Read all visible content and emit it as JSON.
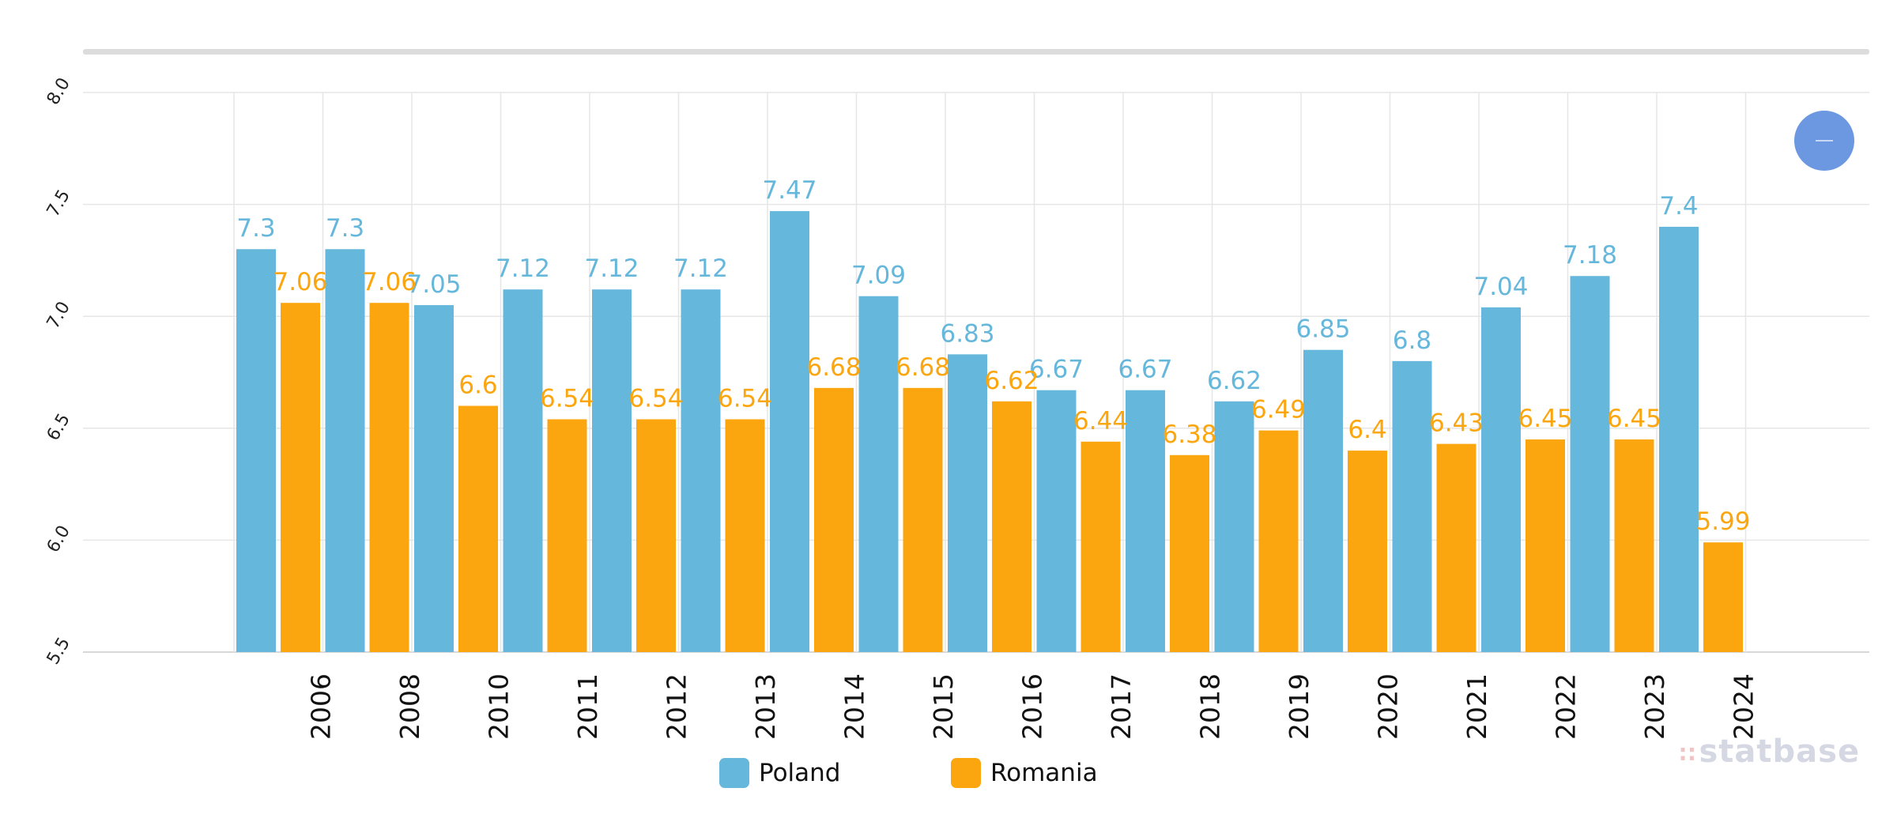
{
  "chart_data": {
    "type": "bar",
    "title": "",
    "xlabel": "",
    "ylabel": "",
    "categories": [
      "2006",
      "2008",
      "2010",
      "2011",
      "2012",
      "2013",
      "2014",
      "2015",
      "2016",
      "2017",
      "2018",
      "2019",
      "2020",
      "2021",
      "2022",
      "2023",
      "2024"
    ],
    "series": [
      {
        "name": "Poland",
        "color": "#66b7dc",
        "values": [
          7.3,
          7.3,
          7.05,
          7.12,
          7.12,
          7.12,
          7.47,
          7.09,
          6.83,
          6.67,
          6.67,
          6.62,
          6.85,
          6.8,
          7.04,
          7.18,
          7.4
        ],
        "labels": [
          "7.3",
          "7.3",
          "7.05",
          "7.12",
          "7.12",
          "7.12",
          "7.47",
          "7.09",
          "6.83",
          "6.67",
          "6.67",
          "6.62",
          "6.85",
          "6.8",
          "7.04",
          "7.18",
          "7.4"
        ]
      },
      {
        "name": "Romania",
        "color": "#fca60f",
        "values": [
          7.06,
          7.06,
          6.6,
          6.54,
          6.54,
          6.54,
          6.68,
          6.68,
          6.62,
          6.44,
          6.38,
          6.49,
          6.4,
          6.43,
          6.45,
          6.45,
          5.99
        ],
        "labels": [
          "7.06",
          "7.06",
          "6.6",
          "6.54",
          "6.54",
          "6.54",
          "6.68",
          "6.68",
          "6.62",
          "6.44",
          "6.38",
          "6.49",
          "6.4",
          "6.43",
          "6.45",
          "6.45",
          "5.99"
        ]
      }
    ],
    "yticks": [
      "5.5",
      "6.0",
      "6.5",
      "7.0",
      "7.5",
      "8.0"
    ],
    "ylim": [
      5.5,
      8.0
    ],
    "grid": true,
    "legend": "bottom-center"
  },
  "legend": {
    "items": [
      {
        "label": "Poland",
        "color": "#66b7dc"
      },
      {
        "label": "Romania",
        "color": "#fca60f"
      }
    ]
  },
  "watermark": {
    "dots": "∷",
    "text": "statbase"
  },
  "zoom_button": {
    "icon": "minus-icon"
  }
}
